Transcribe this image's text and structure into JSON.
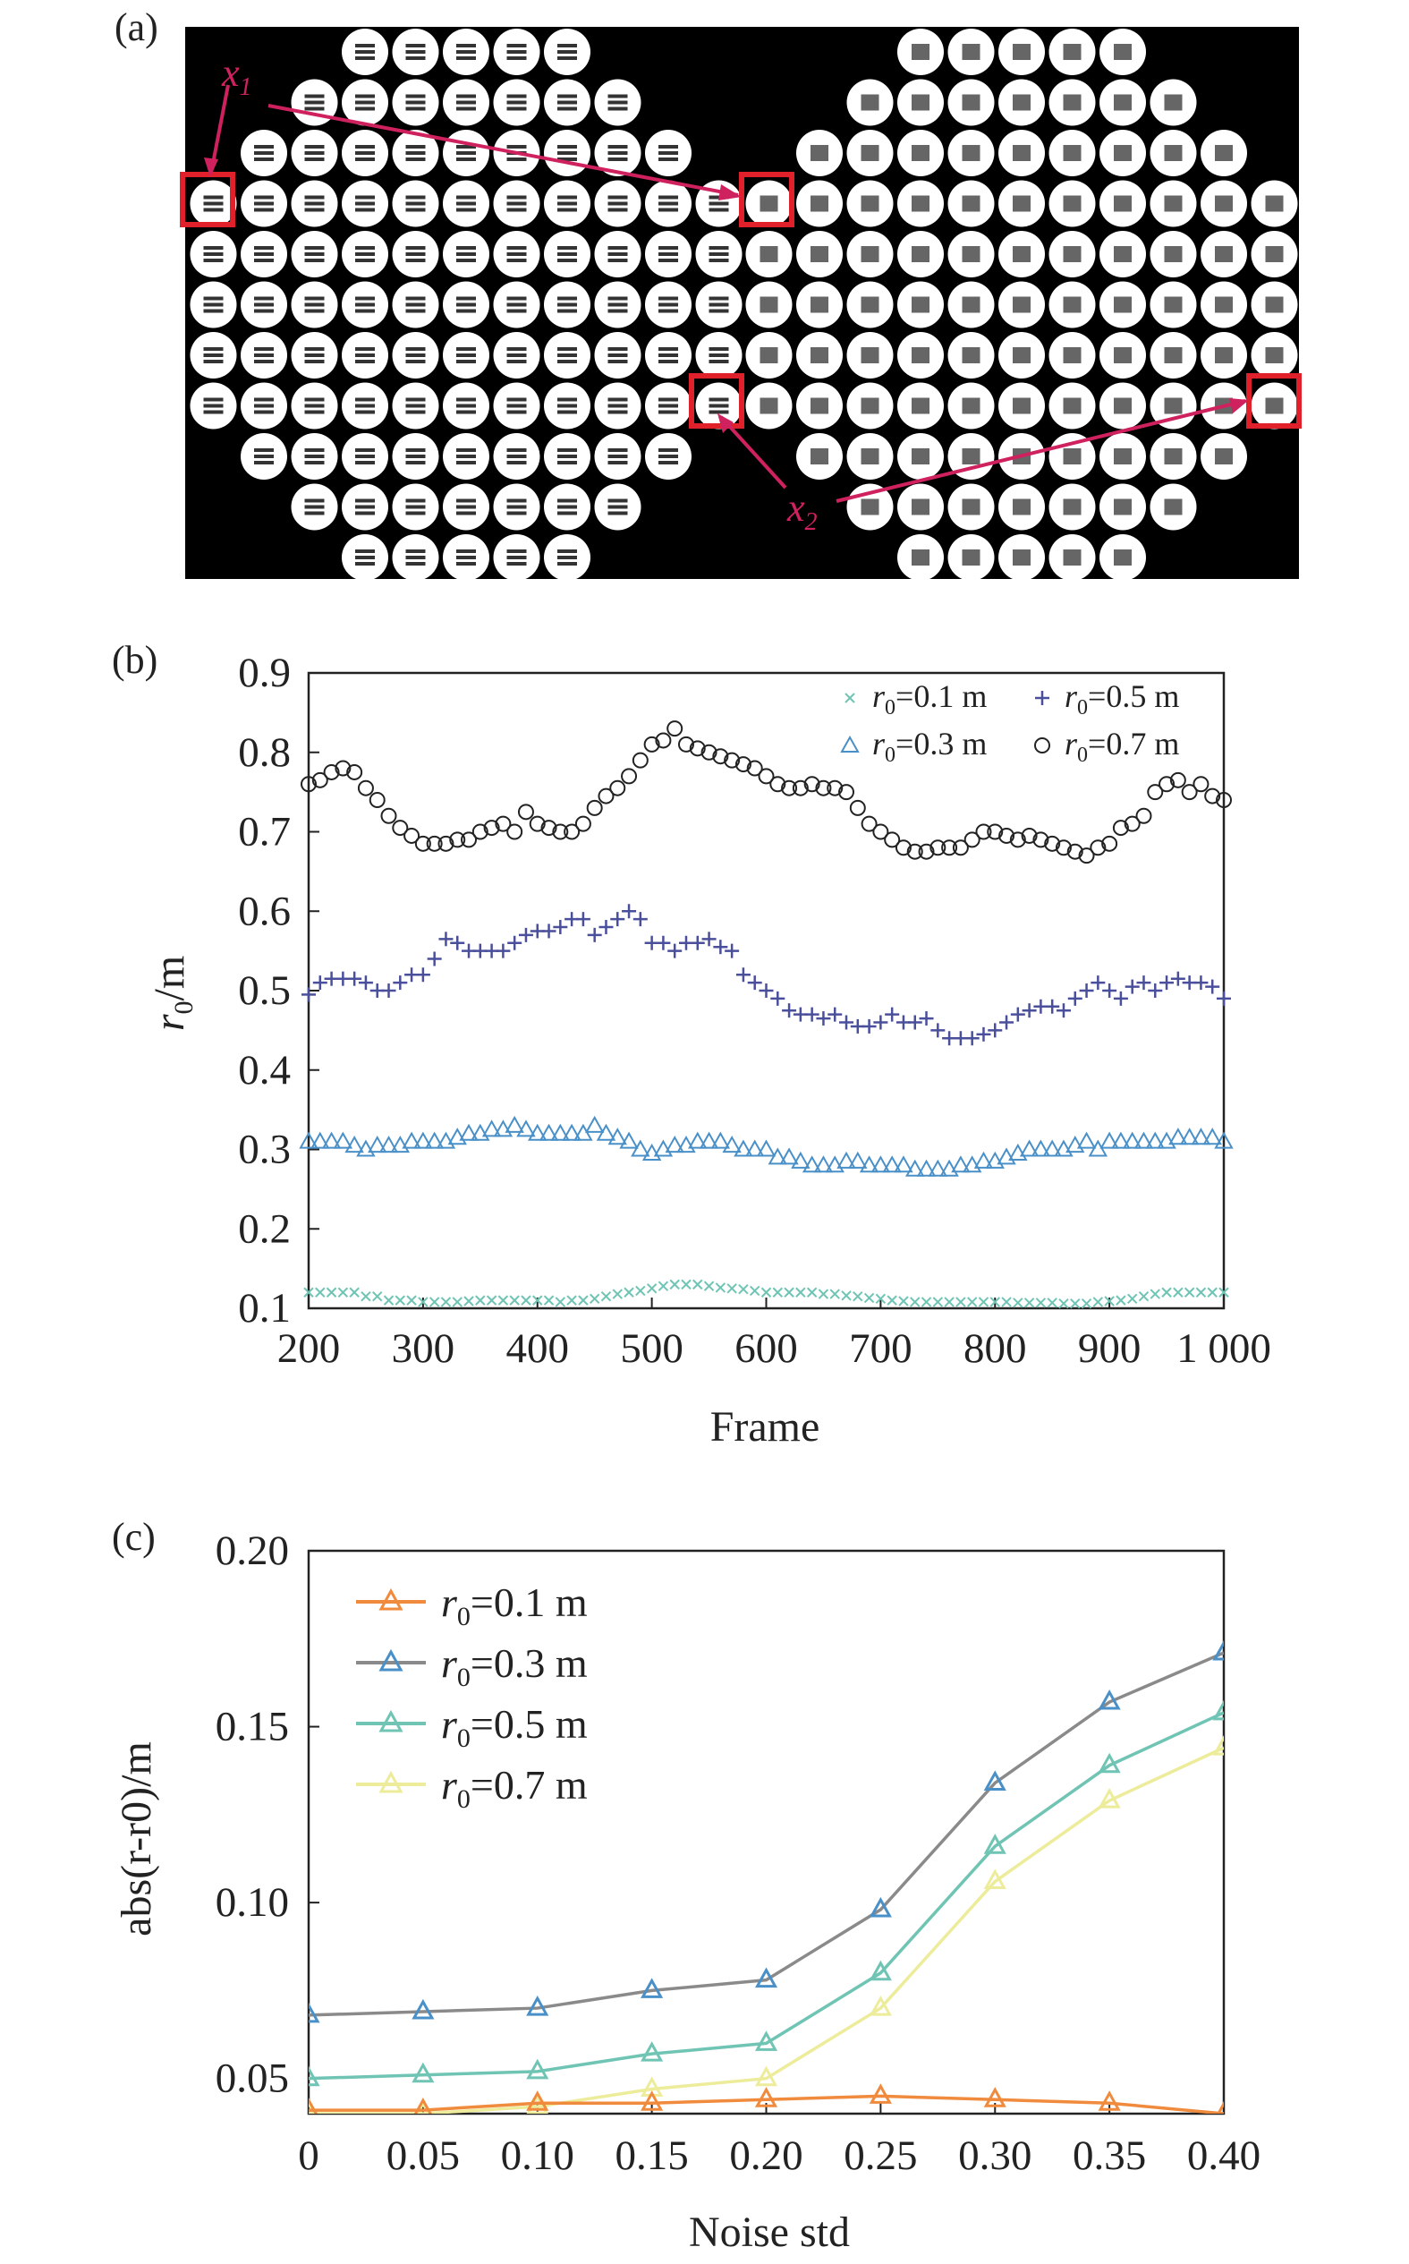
{
  "panels": {
    "a": "(a)",
    "b": "(b)",
    "c": "(c)"
  },
  "panel_a": {
    "x1_label": "x",
    "x1_sub": "1",
    "x2_label": "x",
    "x2_sub": "2",
    "background": "#000000",
    "highlight_color": "#e0202a",
    "arrow_color": "#d0215f",
    "left_rows": [
      5,
      7,
      9,
      11,
      11,
      11,
      11,
      11,
      9,
      7,
      5
    ],
    "right_rows": [
      5,
      7,
      9,
      11,
      11,
      11,
      11,
      11,
      9,
      7,
      5
    ]
  },
  "chart_data": [
    {
      "type": "scatter",
      "title": "",
      "xlabel": "Frame",
      "ylabel_main": "r",
      "ylabel_sub": "0",
      "ylabel_unit": "/m",
      "xlim": [
        200,
        1000
      ],
      "ylim": [
        0.1,
        0.9
      ],
      "xticks": [
        200,
        300,
        400,
        500,
        600,
        700,
        800,
        900,
        1000
      ],
      "xtick_labels": [
        "200",
        "300",
        "400",
        "500",
        "600",
        "700",
        "800",
        "900",
        "1 000"
      ],
      "yticks": [
        0.1,
        0.2,
        0.3,
        0.4,
        0.5,
        0.6,
        0.7,
        0.8,
        0.9
      ],
      "ytick_labels": [
        "0.1",
        "0.2",
        "0.3",
        "0.4",
        "0.5",
        "0.6",
        "0.7",
        "0.8",
        "0.9"
      ],
      "legend_position": "top-right",
      "x": [
        200,
        210,
        220,
        230,
        240,
        250,
        260,
        270,
        280,
        290,
        300,
        310,
        320,
        330,
        340,
        350,
        360,
        370,
        380,
        390,
        400,
        410,
        420,
        430,
        440,
        450,
        460,
        470,
        480,
        490,
        500,
        510,
        520,
        530,
        540,
        550,
        560,
        570,
        580,
        590,
        600,
        610,
        620,
        630,
        640,
        650,
        660,
        670,
        680,
        690,
        700,
        710,
        720,
        730,
        740,
        750,
        760,
        770,
        780,
        790,
        800,
        810,
        820,
        830,
        840,
        850,
        860,
        870,
        880,
        890,
        900,
        910,
        920,
        930,
        940,
        950,
        960,
        970,
        980,
        990,
        1000
      ],
      "series": [
        {
          "name_main": "r",
          "name_sub": "0",
          "name_rest": "=0.1 m",
          "marker": "x",
          "color": "#6fc4b4",
          "values": [
            0.12,
            0.12,
            0.12,
            0.12,
            0.12,
            0.115,
            0.115,
            0.11,
            0.11,
            0.11,
            0.108,
            0.108,
            0.108,
            0.108,
            0.109,
            0.11,
            0.11,
            0.11,
            0.11,
            0.11,
            0.11,
            0.11,
            0.108,
            0.11,
            0.11,
            0.112,
            0.115,
            0.118,
            0.12,
            0.122,
            0.125,
            0.128,
            0.13,
            0.13,
            0.13,
            0.128,
            0.126,
            0.125,
            0.124,
            0.122,
            0.12,
            0.12,
            0.12,
            0.12,
            0.12,
            0.118,
            0.118,
            0.116,
            0.115,
            0.113,
            0.112,
            0.11,
            0.109,
            0.108,
            0.108,
            0.108,
            0.108,
            0.108,
            0.108,
            0.108,
            0.108,
            0.108,
            0.107,
            0.107,
            0.107,
            0.107,
            0.106,
            0.106,
            0.106,
            0.108,
            0.109,
            0.11,
            0.112,
            0.115,
            0.118,
            0.12,
            0.12,
            0.12,
            0.12,
            0.12,
            0.12
          ]
        },
        {
          "name_main": "r",
          "name_sub": "0",
          "name_rest": "=0.3 m",
          "marker": "triangle",
          "color": "#4a90c8",
          "values": [
            0.31,
            0.31,
            0.31,
            0.31,
            0.305,
            0.3,
            0.305,
            0.305,
            0.305,
            0.31,
            0.31,
            0.31,
            0.31,
            0.315,
            0.32,
            0.32,
            0.325,
            0.325,
            0.33,
            0.325,
            0.32,
            0.32,
            0.32,
            0.32,
            0.32,
            0.33,
            0.32,
            0.315,
            0.31,
            0.3,
            0.295,
            0.3,
            0.305,
            0.305,
            0.31,
            0.31,
            0.31,
            0.305,
            0.3,
            0.3,
            0.3,
            0.29,
            0.29,
            0.285,
            0.28,
            0.28,
            0.28,
            0.285,
            0.285,
            0.28,
            0.28,
            0.28,
            0.28,
            0.275,
            0.275,
            0.275,
            0.275,
            0.28,
            0.28,
            0.285,
            0.285,
            0.29,
            0.295,
            0.3,
            0.3,
            0.3,
            0.3,
            0.305,
            0.31,
            0.3,
            0.31,
            0.31,
            0.31,
            0.31,
            0.31,
            0.31,
            0.315,
            0.315,
            0.315,
            0.315,
            0.31
          ]
        },
        {
          "name_main": "r",
          "name_sub": "0",
          "name_rest": "=0.5 m",
          "marker": "plus",
          "color": "#4a4f9c",
          "values": [
            0.495,
            0.51,
            0.515,
            0.515,
            0.515,
            0.51,
            0.5,
            0.5,
            0.51,
            0.52,
            0.52,
            0.54,
            0.565,
            0.56,
            0.55,
            0.55,
            0.55,
            0.55,
            0.56,
            0.57,
            0.575,
            0.575,
            0.58,
            0.59,
            0.59,
            0.57,
            0.58,
            0.59,
            0.6,
            0.59,
            0.56,
            0.56,
            0.55,
            0.56,
            0.56,
            0.565,
            0.555,
            0.55,
            0.52,
            0.51,
            0.5,
            0.49,
            0.475,
            0.47,
            0.47,
            0.465,
            0.47,
            0.46,
            0.455,
            0.455,
            0.46,
            0.47,
            0.46,
            0.46,
            0.465,
            0.45,
            0.44,
            0.44,
            0.44,
            0.445,
            0.45,
            0.46,
            0.47,
            0.475,
            0.48,
            0.48,
            0.475,
            0.49,
            0.5,
            0.51,
            0.5,
            0.49,
            0.505,
            0.51,
            0.5,
            0.51,
            0.515,
            0.51,
            0.51,
            0.505,
            0.49
          ]
        },
        {
          "name_main": "r",
          "name_sub": "0",
          "name_rest": "=0.7 m",
          "marker": "circle",
          "color": "#222222",
          "values": [
            0.76,
            0.765,
            0.775,
            0.78,
            0.775,
            0.755,
            0.74,
            0.72,
            0.705,
            0.695,
            0.685,
            0.685,
            0.685,
            0.69,
            0.69,
            0.7,
            0.705,
            0.71,
            0.7,
            0.725,
            0.71,
            0.705,
            0.7,
            0.7,
            0.71,
            0.73,
            0.745,
            0.755,
            0.77,
            0.79,
            0.81,
            0.815,
            0.83,
            0.81,
            0.805,
            0.8,
            0.795,
            0.79,
            0.785,
            0.78,
            0.77,
            0.76,
            0.755,
            0.755,
            0.76,
            0.755,
            0.755,
            0.75,
            0.73,
            0.71,
            0.7,
            0.69,
            0.68,
            0.675,
            0.675,
            0.68,
            0.68,
            0.68,
            0.69,
            0.7,
            0.7,
            0.695,
            0.69,
            0.695,
            0.69,
            0.685,
            0.68,
            0.675,
            0.67,
            0.68,
            0.685,
            0.705,
            0.71,
            0.72,
            0.75,
            0.76,
            0.765,
            0.75,
            0.76,
            0.745,
            0.74
          ]
        }
      ]
    },
    {
      "type": "line",
      "title": "",
      "xlabel": "Noise std",
      "ylabel": "abs(r-r0)/m",
      "xlim": [
        0,
        0.4
      ],
      "ylim": [
        0.04,
        0.2
      ],
      "xticks": [
        0,
        0.05,
        0.1,
        0.15,
        0.2,
        0.25,
        0.3,
        0.35,
        0.4
      ],
      "xtick_labels": [
        "0",
        "0.05",
        "0.10",
        "0.15",
        "0.20",
        "0.25",
        "0.30",
        "0.35",
        "0.40"
      ],
      "yticks": [
        0.05,
        0.1,
        0.15,
        0.2
      ],
      "ytick_labels": [
        "0.05",
        "0.10",
        "0.15",
        "0.20"
      ],
      "legend_position": "top-left",
      "x": [
        0,
        0.05,
        0.1,
        0.15,
        0.2,
        0.25,
        0.3,
        0.35,
        0.4
      ],
      "series": [
        {
          "name_main": "r",
          "name_sub": "0",
          "name_rest": "=0.1 m",
          "marker": "triangle",
          "color": "#f08a3c",
          "values": [
            0.041,
            0.041,
            0.043,
            0.043,
            0.044,
            0.045,
            0.044,
            0.043,
            0.04
          ]
        },
        {
          "name_main": "r",
          "name_sub": "0",
          "name_rest": "=0.3 m",
          "marker": "triangle",
          "color": "#8a8a8a",
          "marker_color": "#4a90c8",
          "values": [
            0.068,
            0.069,
            0.07,
            0.075,
            0.078,
            0.098,
            0.134,
            0.157,
            0.171
          ]
        },
        {
          "name_main": "r",
          "name_sub": "0",
          "name_rest": "=0.5 m",
          "marker": "triangle",
          "color": "#6fc4b4",
          "values": [
            0.05,
            0.051,
            0.052,
            0.057,
            0.06,
            0.08,
            0.116,
            0.139,
            0.154
          ]
        },
        {
          "name_main": "r",
          "name_sub": "0",
          "name_rest": "=0.7 m",
          "marker": "triangle",
          "color": "#ecec9a",
          "values": [
            0.04,
            0.04,
            0.042,
            0.047,
            0.05,
            0.07,
            0.106,
            0.129,
            0.144
          ]
        }
      ]
    }
  ]
}
